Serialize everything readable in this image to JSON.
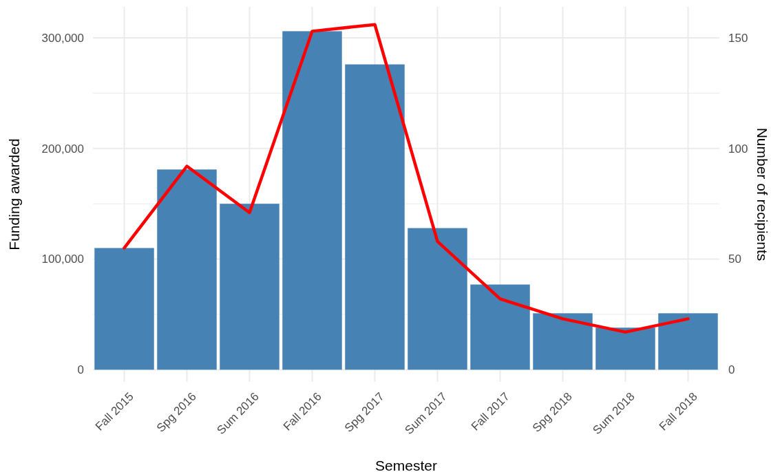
{
  "chart_data": {
    "type": "bar",
    "xlabel": "Semester",
    "ylabel": "Funding awarded",
    "y2label": "Number of recipients",
    "categories": [
      "Fall 2015",
      "Spg 2016",
      "Sum 2016",
      "Fall 2016",
      "Spg 2017",
      "Sum 2017",
      "Fall 2017",
      "Spg 2018",
      "Sum 2018",
      "Fall 2018"
    ],
    "series": [
      {
        "color": "#4682b4",
        "values": [
          110000,
          181000,
          150000,
          306000,
          276000,
          128000,
          77000,
          51000,
          38000,
          51000
        ]
      },
      {
        "type": "line",
        "axis": "y2",
        "color": "#ff0000",
        "values": [
          55,
          92,
          71,
          153,
          156,
          58,
          32,
          23,
          17,
          23
        ]
      }
    ],
    "ylim": [
      -11000,
      328000
    ],
    "yticks": [
      {
        "value": 0,
        "label": "0"
      },
      {
        "value": 100000,
        "label": "100,000"
      },
      {
        "value": 200000,
        "label": "200,000"
      },
      {
        "value": 300000,
        "label": "300,000"
      }
    ],
    "y2lim": [
      -5.5,
      164
    ],
    "y2ticks": [
      0,
      50,
      100,
      150
    ],
    "grid": true
  }
}
